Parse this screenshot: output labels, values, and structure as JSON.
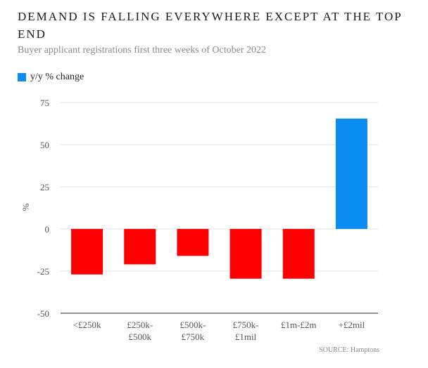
{
  "title": "DEMAND IS FALLING EVERYWHERE EXCEPT AT THE TOP END",
  "subtitle": "Buyer applicant registrations first three weeks of October 2022",
  "source": "SOURCE: Hamptons",
  "chart_data": {
    "type": "bar",
    "categories": [
      "<£250k",
      "£250k-\n£500k",
      "£500k-\n£750k",
      "£750k-\n£1mil",
      "£1m-£2m",
      "+£2mil"
    ],
    "series": [
      {
        "name": "y/y % change",
        "values": [
          -27,
          -21,
          -16,
          -29.5,
          -29.5,
          65.5
        ]
      }
    ],
    "ylabel": "%",
    "ylim": [
      -50,
      75
    ],
    "yticks": [
      75,
      50,
      25,
      0,
      -25,
      -50
    ],
    "grid": true,
    "legend_position": "top-left",
    "colors": {
      "positive": "#0a8cf0",
      "negative": "#ff0000",
      "legend": "#0a8cf0"
    }
  }
}
